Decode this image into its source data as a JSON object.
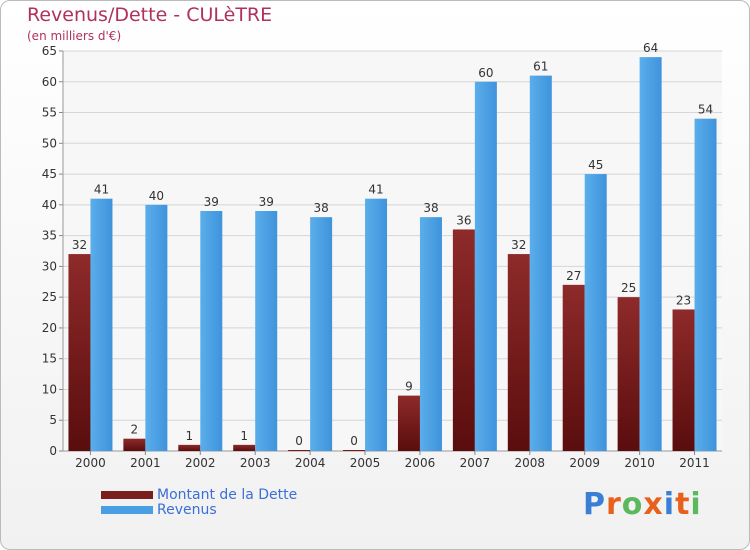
{
  "chart_data": {
    "type": "bar",
    "title": "Revenus/Dette - CULèTRE",
    "subtitle": "(en milliers d'€)",
    "categories": [
      "2000",
      "2001",
      "2002",
      "2003",
      "2004",
      "2005",
      "2006",
      "2007",
      "2008",
      "2009",
      "2010",
      "2011"
    ],
    "series": [
      {
        "name": "Montant de la Dette",
        "color": "#7a1e1e",
        "values": [
          32,
          2,
          1,
          1,
          0,
          0,
          9,
          36,
          32,
          27,
          25,
          23
        ]
      },
      {
        "name": "Revenus",
        "color": "#4a9fe4",
        "values": [
          41,
          40,
          39,
          39,
          38,
          41,
          38,
          60,
          61,
          45,
          64,
          54
        ]
      }
    ],
    "ylim": [
      0,
      65
    ],
    "yticks": [
      0,
      5,
      10,
      15,
      20,
      25,
      30,
      35,
      40,
      45,
      50,
      55,
      60,
      65
    ],
    "grid": true,
    "legend_position": "bottom-left"
  },
  "logo": {
    "text": "Proxiti",
    "letter_colors": [
      "#3a7fd5",
      "#e8601c",
      "#5cb85c",
      "#e8601c",
      "#3a7fd5",
      "#e8601c",
      "#5cb85c"
    ]
  }
}
